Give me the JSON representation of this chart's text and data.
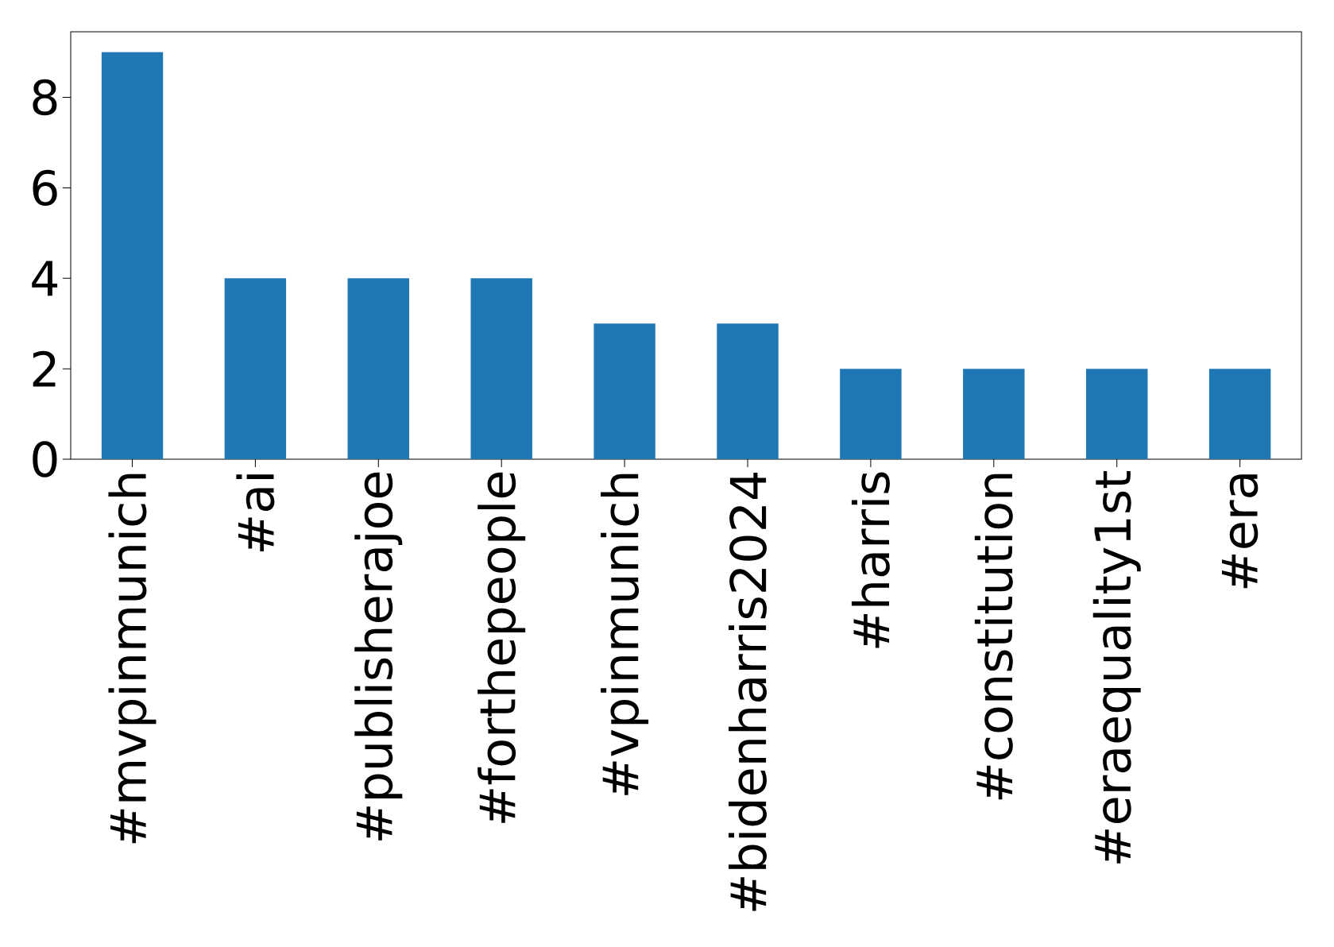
{
  "chart_data": {
    "type": "bar",
    "categories": [
      "#mvpinmunich",
      "#ai",
      "#publisherajoe",
      "#forthepeople",
      "#vpinmunich",
      "#bidenharris2024",
      "#harris",
      "#constitution",
      "#eraequality1st",
      "#era"
    ],
    "values": [
      9,
      4,
      4,
      4,
      3,
      3,
      2,
      2,
      2,
      2
    ],
    "color": "#1f77b4",
    "ylim": [
      0,
      9.45
    ],
    "yticks": [
      0,
      2,
      4,
      6,
      8
    ],
    "grid": false
  }
}
